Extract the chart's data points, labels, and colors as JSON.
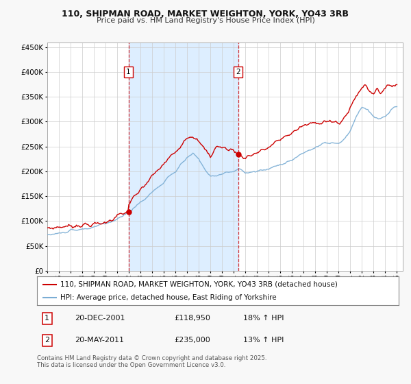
{
  "title": "110, SHIPMAN ROAD, MARKET WEIGHTON, YORK, YO43 3RB",
  "subtitle": "Price paid vs. HM Land Registry's House Price Index (HPI)",
  "background_color": "#f8f8f8",
  "plot_bg_color": "#ffffff",
  "red_line_color": "#cc0000",
  "blue_line_color": "#7aadd4",
  "vline_color": "#cc0000",
  "highlight_fill": "#ddeeff",
  "legend1": "110, SHIPMAN ROAD, MARKET WEIGHTON, YORK, YO43 3RB (detached house)",
  "legend2": "HPI: Average price, detached house, East Riding of Yorkshire",
  "sale1_date": "20-DEC-2001",
  "sale1_price": "£118,950",
  "sale1_hpi": "18% ↑ HPI",
  "sale1_year": 2001.97,
  "sale1_value": 118950,
  "sale2_date": "20-MAY-2011",
  "sale2_price": "£235,000",
  "sale2_hpi": "13% ↑ HPI",
  "sale2_year": 2011.38,
  "sale2_value": 235000,
  "footer": "Contains HM Land Registry data © Crown copyright and database right 2025.\nThis data is licensed under the Open Government Licence v3.0.",
  "ylim": [
    0,
    460000
  ],
  "xlim_start": 1995.0,
  "xlim_end": 2025.5,
  "yticks": [
    0,
    50000,
    100000,
    150000,
    200000,
    250000,
    300000,
    350000,
    400000,
    450000
  ],
  "xticks": [
    1995,
    1996,
    1997,
    1998,
    1999,
    2000,
    2001,
    2002,
    2003,
    2004,
    2005,
    2006,
    2007,
    2008,
    2009,
    2010,
    2011,
    2012,
    2013,
    2014,
    2015,
    2016,
    2017,
    2018,
    2019,
    2020,
    2021,
    2022,
    2023,
    2024,
    2025
  ]
}
